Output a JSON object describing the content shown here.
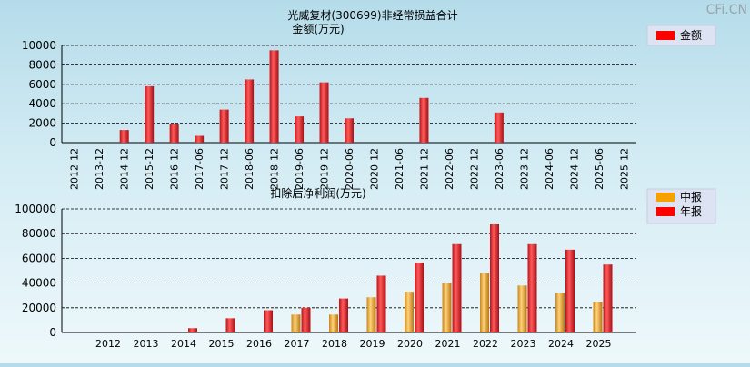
{
  "watermark": "CFi.CN",
  "chart_data": [
    {
      "type": "bar",
      "title": "光威复材(300699)非经常损益合计",
      "subtitle": "金额(万元)",
      "categories": [
        "2012-12",
        "2013-12",
        "2014-12",
        "2015-12",
        "2016-12",
        "2017-06",
        "2017-12",
        "2018-06",
        "2018-12",
        "2019-06",
        "2019-12",
        "2020-06",
        "2020-12",
        "2021-06",
        "2021-12",
        "2022-06",
        "2022-12",
        "2023-06",
        "2023-12",
        "2024-06",
        "2024-12",
        "2025-06",
        "2025-12"
      ],
      "series": [
        {
          "name": "金额",
          "color": "#e8262c",
          "values": [
            0,
            0,
            1300,
            5800,
            1900,
            700,
            3400,
            6500,
            9500,
            2700,
            6200,
            2500,
            0,
            0,
            4600,
            0,
            0,
            3100,
            0,
            0,
            0,
            0,
            0
          ]
        }
      ],
      "ylim": [
        0,
        10000
      ],
      "yticks": [
        0,
        2000,
        4000,
        6000,
        8000,
        10000
      ],
      "grid": true,
      "legend": "top-right"
    },
    {
      "type": "bar",
      "title": "扣除后净利润(万元)",
      "categories": [
        "2012",
        "2013",
        "2014",
        "2015",
        "2016",
        "2017",
        "2018",
        "2019",
        "2020",
        "2021",
        "2022",
        "2023",
        "2024",
        "2025"
      ],
      "series": [
        {
          "name": "中报",
          "color": "#f0a020",
          "values": [
            0,
            0,
            0,
            0,
            0,
            14500,
            14500,
            28500,
            33000,
            40000,
            48000,
            38000,
            32000,
            25000
          ]
        },
        {
          "name": "年报",
          "color": "#e8262c",
          "values": [
            0,
            0,
            3500,
            11500,
            18000,
            20000,
            27500,
            46000,
            56500,
            71500,
            87500,
            71500,
            67000,
            55000
          ]
        }
      ],
      "ylim": [
        0,
        100000
      ],
      "yticks": [
        0,
        20000,
        40000,
        60000,
        80000,
        100000
      ],
      "grid": true,
      "legend": "top-right"
    }
  ]
}
